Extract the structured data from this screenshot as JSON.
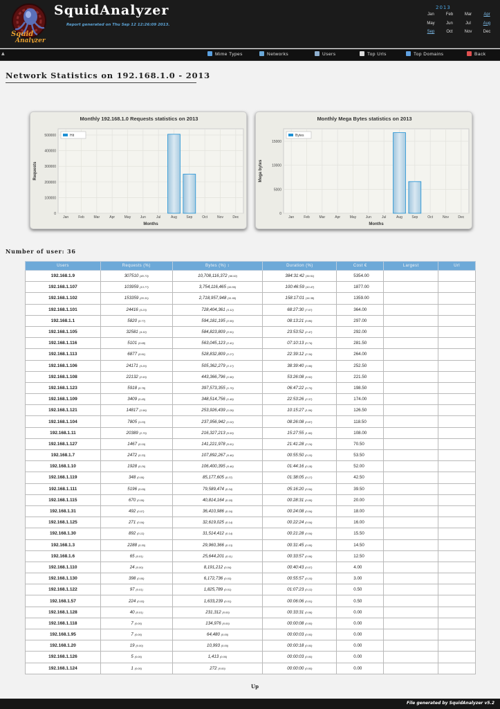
{
  "header": {
    "app_title": "SquidAnalyzer",
    "report_generated": "Report generated on Thu Sep 12 12:26:09 2013.",
    "year": "2013",
    "months": [
      {
        "label": "Jan",
        "link": false
      },
      {
        "label": "Feb",
        "link": false
      },
      {
        "label": "Mar",
        "link": false
      },
      {
        "label": "Apr",
        "link": true
      },
      {
        "label": "May",
        "link": false
      },
      {
        "label": "Jun",
        "link": false
      },
      {
        "label": "Jul",
        "link": false
      },
      {
        "label": "Aug",
        "link": true
      },
      {
        "label": "Sep",
        "link": true
      },
      {
        "label": "Oct",
        "link": false
      },
      {
        "label": "Nov",
        "link": false
      },
      {
        "label": "Dec",
        "link": false
      }
    ]
  },
  "nav": {
    "items": [
      {
        "label": "Mime Types",
        "icon": "mime-icon",
        "color": "#5aa0e0"
      },
      {
        "label": "Networks",
        "icon": "network-icon",
        "color": "#6aa8d8"
      },
      {
        "label": "Users",
        "icon": "user-icon",
        "color": "#8fb0d0"
      },
      {
        "label": "Top Urls",
        "icon": "cursor-icon",
        "color": "#dddddd"
      },
      {
        "label": "Top Domains",
        "icon": "globe-icon",
        "color": "#5fa0e0"
      },
      {
        "label": "Back",
        "icon": "back-icon",
        "color": "#e05050"
      }
    ]
  },
  "page_title": "Network Statistics on 192.168.1.0 - 2013",
  "user_count": "Number of user: 36",
  "table": {
    "headers": [
      "Users",
      "Requests (%)",
      "Bytes (%) ↕",
      "Duration (%)",
      "Cost €",
      "Largest",
      "Url"
    ],
    "rows": [
      [
        "192.168.1.9",
        "307510",
        "(40.73)",
        "10,708,116,372",
        "(46.92)",
        "384:31:42",
        "(39.51)",
        "5354.00"
      ],
      [
        "192.168.1.107",
        "103959",
        "(13.77)",
        "3,754,116,465",
        "(16.50)",
        "100:46:59",
        "(10.47)",
        "1877.00"
      ],
      [
        "192.168.1.102",
        "153359",
        "(20.31)",
        "2,718,957,948",
        "(11.60)",
        "158:17:01",
        "(16.38)",
        "1359.00"
      ],
      [
        "192.168.1.101",
        "24416",
        "(3.23)",
        "728,404,361",
        "(3.12)",
        "68:27:30",
        "(7.07)",
        "364.00"
      ],
      [
        "192.168.1.1",
        "5820",
        "(0.77)",
        "594,181,195",
        "(2.55)",
        "08:13:21",
        "(0.85)",
        "297.00"
      ],
      [
        "192.168.1.105",
        "32581",
        "(4.32)",
        "584,823,809",
        "(2.51)",
        "23:53:52",
        "(2.47)",
        "292.00"
      ],
      [
        "192.168.1.116",
        "5101",
        "(0.68)",
        "563,045,123",
        "(2.41)",
        "07:10:13",
        "(0.74)",
        "281.50"
      ],
      [
        "192.168.1.113",
        "6877",
        "(0.91)",
        "528,832,809",
        "(2.27)",
        "22:39:12",
        "(2.34)",
        "264.00"
      ],
      [
        "192.168.1.106",
        "24171",
        "(3.20)",
        "505,362,279",
        "(2.17)",
        "38:39:40",
        "(3.99)",
        "252.50"
      ],
      [
        "192.168.1.108",
        "22132",
        "(2.93)",
        "443,366,796",
        "(1.90)",
        "53:26:08",
        "(5.52)",
        "221.50"
      ],
      [
        "192.168.1.123",
        "5918",
        "(0.78)",
        "397,573,355",
        "(1.70)",
        "06:47:22",
        "(0.70)",
        "198.50"
      ],
      [
        "192.168.1.109",
        "3409",
        "(0.45)",
        "348,514,756",
        "(1.49)",
        "22:53:26",
        "(2.37)",
        "174.00"
      ],
      [
        "192.168.1.121",
        "14817",
        "(1.96)",
        "253,926,439",
        "(1.09)",
        "10:15:27",
        "(1.06)",
        "126.50"
      ],
      [
        "192.168.1.104",
        "7805",
        "(1.03)",
        "237,956,942",
        "(1.02)",
        "08:26:08",
        "(0.87)",
        "118.50"
      ],
      [
        "192.168.1.11",
        "20389",
        "(2.70)",
        "216,327,213",
        "(0.93)",
        "15:27:55",
        "(1.60)",
        "108.00"
      ],
      [
        "192.168.1.127",
        "1467",
        "(0.19)",
        "141,221,978",
        "(0.61)",
        "21:41:28",
        "(2.24)",
        "70.50"
      ],
      [
        "192.168.1.7",
        "2472",
        "(0.33)",
        "107,892,267",
        "(0.46)",
        "00:55:50",
        "(0.10)",
        "53.50"
      ],
      [
        "192.168.1.10",
        "1928",
        "(0.26)",
        "106,400,395",
        "(0.46)",
        "01:44:16",
        "(0.18)",
        "52.00"
      ],
      [
        "192.168.1.119",
        "348",
        "(0.05)",
        "85,177,605",
        "(0.37)",
        "01:38:05",
        "(0.17)",
        "42.50"
      ],
      [
        "192.168.1.111",
        "5196",
        "(0.69)",
        "79,589,474",
        "(0.34)",
        "05:16:20",
        "(0.54)",
        "39.50"
      ],
      [
        "192.168.1.115",
        "670",
        "(0.09)",
        "40,814,164",
        "(0.18)",
        "00:28:31",
        "(0.05)",
        "20.00"
      ],
      [
        "192.168.1.31",
        "492",
        "(0.07)",
        "36,410,986",
        "(0.16)",
        "00:24:08",
        "(0.04)",
        "18.00"
      ],
      [
        "192.168.1.125",
        "271",
        "(0.04)",
        "32,619,025",
        "(0.14)",
        "00:22:24",
        "(0.04)",
        "16.00"
      ],
      [
        "192.168.1.30",
        "892",
        "(0.12)",
        "31,514,412",
        "(0.14)",
        "00:21:28",
        "(0.04)",
        "15.50"
      ],
      [
        "192.168.1.3",
        "2288",
        "(0.30)",
        "29,960,366",
        "(0.13)",
        "00:31:45",
        "(0.05)",
        "14.50"
      ],
      [
        "192.168.1.6",
        "65",
        "(0.01)",
        "25,644,201",
        "(0.11)",
        "00:33:57",
        "(0.06)",
        "12.50"
      ],
      [
        "192.168.1.110",
        "24",
        "(0.00)",
        "8,191,212",
        "(0.04)",
        "00:40:43",
        "(0.07)",
        "4.00"
      ],
      [
        "192.168.1.130",
        "398",
        "(0.05)",
        "6,172,736",
        "(0.03)",
        "00:55:57",
        "(0.10)",
        "3.00"
      ],
      [
        "192.168.1.122",
        "97",
        "(0.01)",
        "1,825,789",
        "(0.01)",
        "01:07:23",
        "(0.12)",
        "0.50"
      ],
      [
        "192.168.1.57",
        "224",
        "(0.03)",
        "1,633,239",
        "(0.01)",
        "00:06:06",
        "(0.01)",
        "0.50"
      ],
      [
        "192.168.1.128",
        "40",
        "(0.01)",
        "231,312",
        "(0.00)",
        "00:33:31",
        "(0.06)",
        "0.00"
      ],
      [
        "192.168.1.118",
        "7",
        "(0.00)",
        "134,976",
        "(0.00)",
        "00:00:08",
        "(0.00)",
        "0.00"
      ],
      [
        "192.168.1.95",
        "7",
        "(0.00)",
        "64,480",
        "(0.00)",
        "00:00:03",
        "(0.00)",
        "0.00"
      ],
      [
        "192.168.1.20",
        "19",
        "(0.00)",
        "10,993",
        "(0.00)",
        "00:00:18",
        "(0.00)",
        "0.00"
      ],
      [
        "192.168.1.126",
        "5",
        "(0.00)",
        "1,413",
        "(0.00)",
        "00:00:03",
        "(0.00)",
        "0.00"
      ],
      [
        "192.168.1.124",
        "1",
        "(0.00)",
        "272",
        "(0.00)",
        "00:00:00",
        "(0.00)",
        "0.00"
      ]
    ]
  },
  "up_link": "Up",
  "footer": {
    "prefix": "File generated by",
    "name": "SquidAnalyzer v5.2"
  },
  "chart_data": [
    {
      "type": "bar",
      "title": "Monthly 192.168.1.0 Requests statistics on 2013",
      "xlabel": "Months",
      "ylabel": "Requests",
      "legend": "Hit",
      "legend_position": "top-left",
      "categories": [
        "Jan",
        "Feb",
        "Mar",
        "Apr",
        "May",
        "Jun",
        "Jul",
        "Aug",
        "Sep",
        "Oct",
        "Nov",
        "Dec"
      ],
      "values": [
        0,
        0,
        0,
        0,
        0,
        0,
        0,
        505000,
        250000,
        0,
        0,
        0
      ],
      "yticks": [
        0,
        100000,
        200000,
        300000,
        400000,
        500000
      ],
      "ylim": [
        0,
        540000
      ],
      "grid": true
    },
    {
      "type": "bar",
      "title": "Monthly Mega Bytes statistics on 2013",
      "xlabel": "Months",
      "ylabel": "Mega bytes",
      "legend": "Bytes",
      "legend_position": "top-left",
      "categories": [
        "Jan",
        "Feb",
        "Mar",
        "Apr",
        "May",
        "Jun",
        "Jul",
        "Aug",
        "Sep",
        "Oct",
        "Nov",
        "Dec"
      ],
      "values": [
        0,
        0,
        0,
        0,
        0,
        0,
        0,
        16800,
        6600,
        0,
        0,
        0
      ],
      "yticks": [
        0,
        5000,
        10000,
        15000
      ],
      "ylim": [
        0,
        17600
      ],
      "grid": true
    }
  ],
  "colors": {
    "accent": "#6da9d8",
    "bar_fill": "#bcd6e6",
    "bar_stroke": "#1e90d4",
    "header_bg": "#1b1b1b"
  }
}
